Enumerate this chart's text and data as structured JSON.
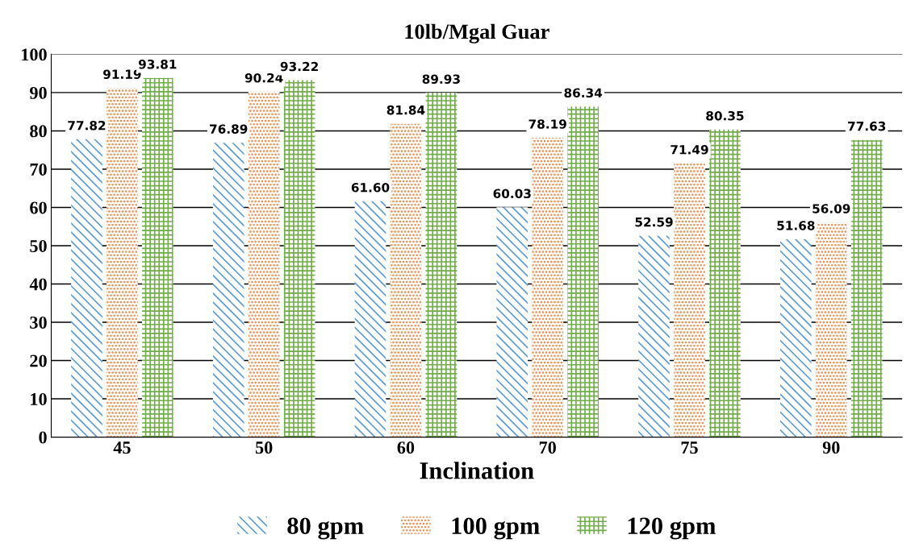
{
  "chart_data": {
    "type": "bar",
    "title": "10lb/Mgal Guar",
    "xlabel": "Inclination",
    "categories": [
      "45",
      "50",
      "60",
      "70",
      "75",
      "90"
    ],
    "series": [
      {
        "name": "80 gpm",
        "color": "#5b9bd5",
        "values": [
          77.82,
          76.89,
          61.6,
          60.03,
          52.59,
          51.68
        ],
        "value_labels": [
          "77.82",
          "76.89",
          "61.60",
          "60.03",
          "52.59",
          "51.68"
        ]
      },
      {
        "name": "100 gpm",
        "color": "#ed7d31",
        "values": [
          91.19,
          90.24,
          81.84,
          78.19,
          71.49,
          56.09
        ],
        "value_labels": [
          "91.19",
          "90.24",
          "81.84",
          "78.19",
          "71.49",
          "56.09"
        ]
      },
      {
        "name": "120 gpm",
        "color": "#70ad47",
        "values": [
          93.81,
          93.22,
          89.93,
          86.34,
          80.35,
          77.63
        ],
        "value_labels": [
          "93.81",
          "93.22",
          "89.93",
          "86.34",
          "80.35",
          "77.63"
        ]
      }
    ],
    "ylim": [
      0,
      100
    ],
    "yticks": [
      0,
      10,
      20,
      30,
      40,
      50,
      60,
      70,
      80,
      90,
      100
    ],
    "grid": "y",
    "legend": "bottom"
  }
}
